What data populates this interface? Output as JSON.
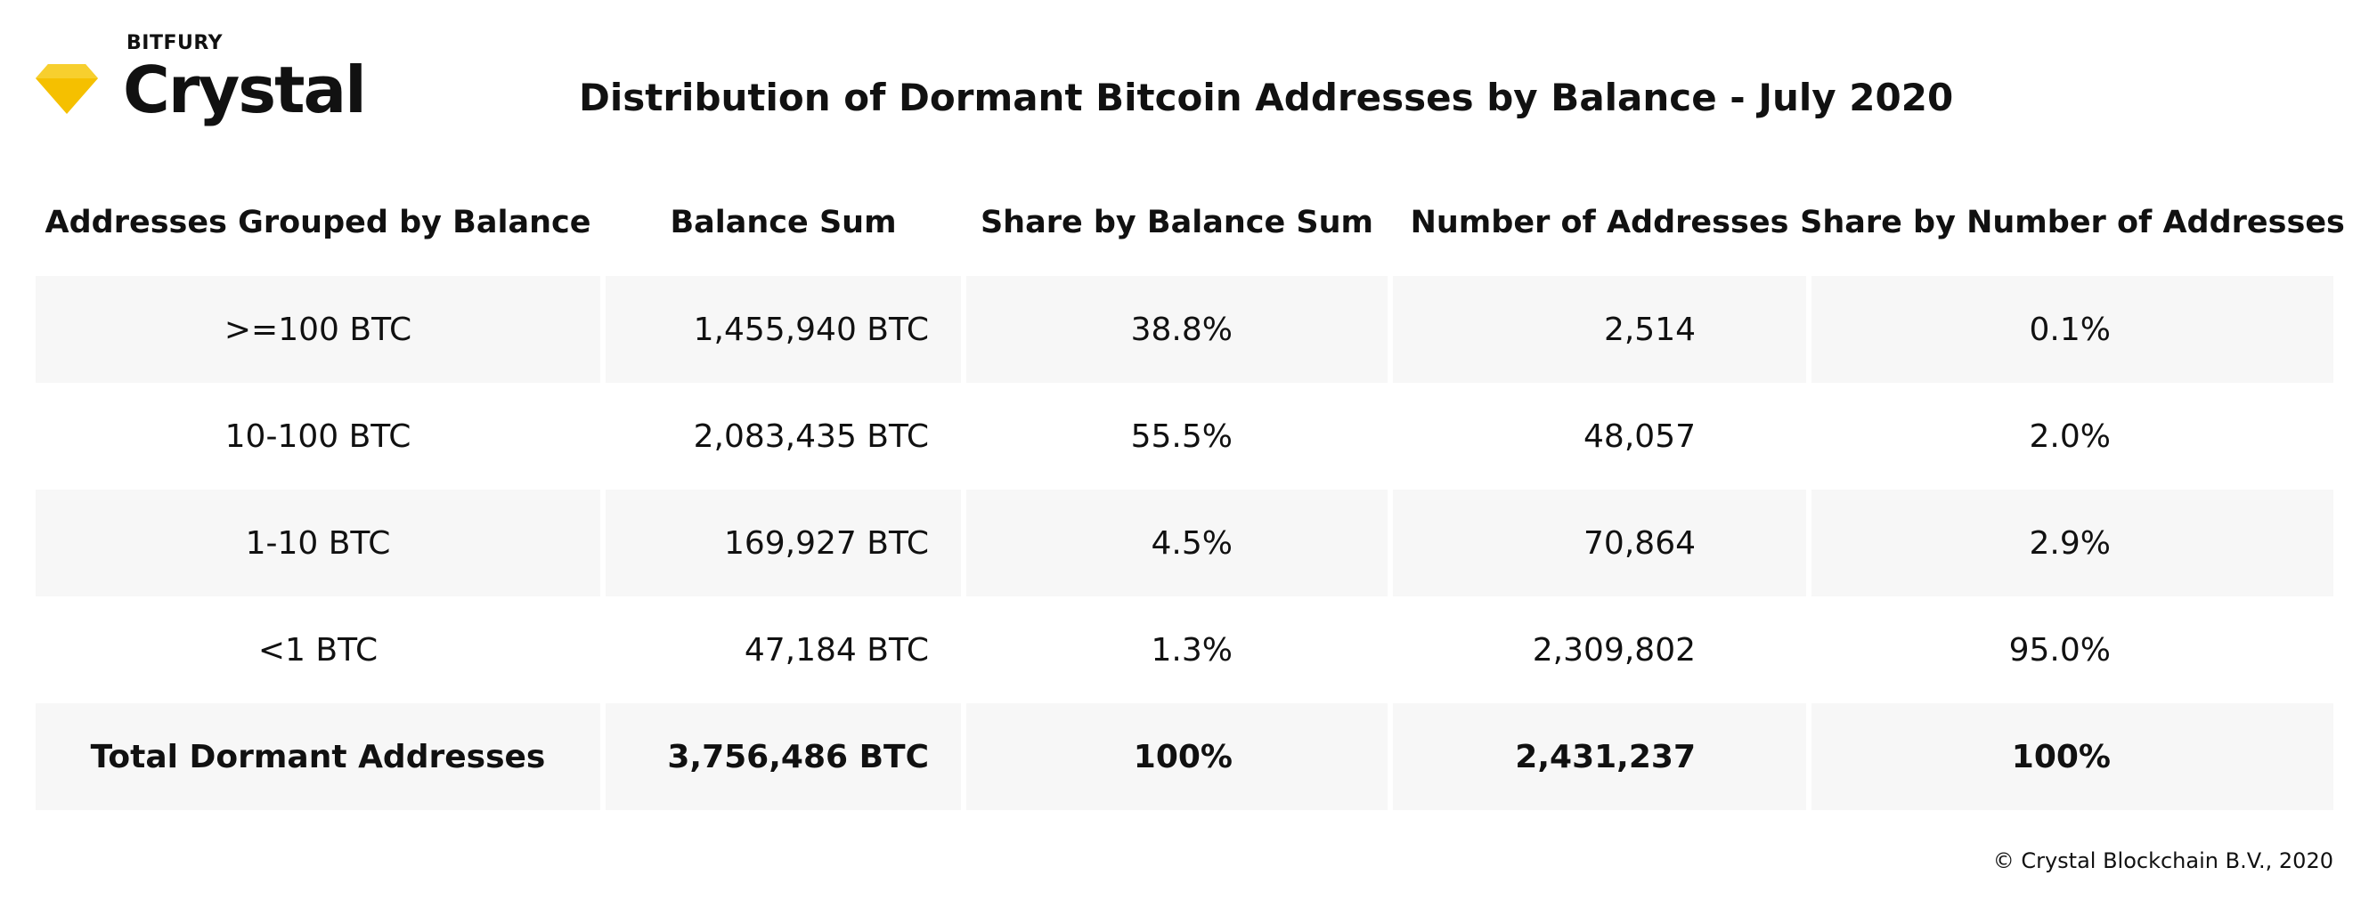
{
  "logo": {
    "company": "BITFURY",
    "product": "Crystal",
    "icon": "diamond-icon",
    "color": "#f5c000"
  },
  "chart_data": {
    "type": "table",
    "title": "Distribution of Dormant Bitcoin Addresses by Balance - July 2020",
    "columns": [
      "Addresses Grouped by Balance",
      "Balance Sum",
      "Share by Balance Sum",
      "Number of Addresses",
      "Share by Number of Addresses"
    ],
    "rows": [
      [
        ">=100 BTC",
        "1,455,940 BTC",
        "38.8%",
        "2,514",
        "0.1%"
      ],
      [
        "10-100 BTC",
        "2,083,435 BTC",
        "55.5%",
        "48,057",
        "2.0%"
      ],
      [
        "1-10 BTC",
        "169,927 BTC",
        "4.5%",
        "70,864",
        "2.9%"
      ],
      [
        "<1 BTC",
        "47,184 BTC",
        "1.3%",
        "2,309,802",
        "95.0%"
      ]
    ],
    "total_row": [
      "Total Dormant Addresses",
      "3,756,486 BTC",
      "100%",
      "2,431,237",
      "100%"
    ]
  },
  "footer": {
    "copyright": "© Crystal Blockchain B.V., 2020"
  },
  "colors": {
    "row_shade": "#f7f7f7",
    "text": "#111111",
    "accent": "#f5c000"
  }
}
